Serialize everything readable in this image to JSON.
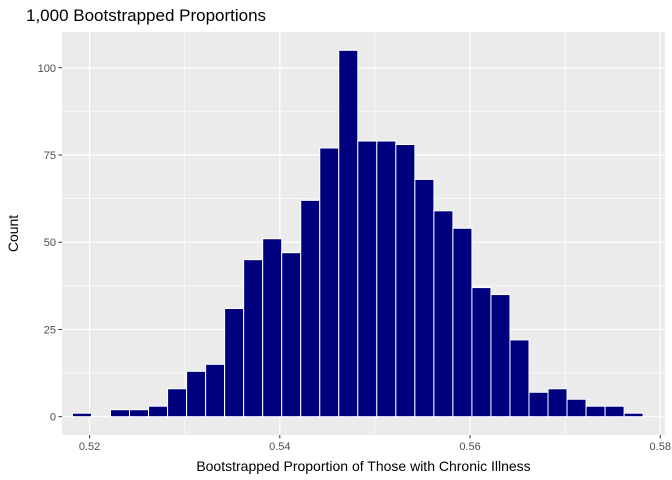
{
  "chart_data": {
    "type": "bar",
    "title": "1,000 Bootstrapped Proportions",
    "xlabel": "Bootstrapped Proportion of Those with Chronic Illness",
    "ylabel": "Count",
    "bin_width": 0.002,
    "bins": [
      {
        "x": 0.5192,
        "count": 1
      },
      {
        "x": 0.5212,
        "count": 0
      },
      {
        "x": 0.5232,
        "count": 2
      },
      {
        "x": 0.5252,
        "count": 2
      },
      {
        "x": 0.5272,
        "count": 3
      },
      {
        "x": 0.5292,
        "count": 8
      },
      {
        "x": 0.5312,
        "count": 13
      },
      {
        "x": 0.5332,
        "count": 15
      },
      {
        "x": 0.5352,
        "count": 31
      },
      {
        "x": 0.5372,
        "count": 45
      },
      {
        "x": 0.5392,
        "count": 51
      },
      {
        "x": 0.5412,
        "count": 47
      },
      {
        "x": 0.5432,
        "count": 62
      },
      {
        "x": 0.5452,
        "count": 77
      },
      {
        "x": 0.5472,
        "count": 105
      },
      {
        "x": 0.5492,
        "count": 79
      },
      {
        "x": 0.5512,
        "count": 79
      },
      {
        "x": 0.5532,
        "count": 78
      },
      {
        "x": 0.5552,
        "count": 68
      },
      {
        "x": 0.5572,
        "count": 59
      },
      {
        "x": 0.5592,
        "count": 54
      },
      {
        "x": 0.5612,
        "count": 37
      },
      {
        "x": 0.5632,
        "count": 35
      },
      {
        "x": 0.5652,
        "count": 22
      },
      {
        "x": 0.5672,
        "count": 7
      },
      {
        "x": 0.5692,
        "count": 8
      },
      {
        "x": 0.5712,
        "count": 5
      },
      {
        "x": 0.5732,
        "count": 3
      },
      {
        "x": 0.5752,
        "count": 3
      },
      {
        "x": 0.5772,
        "count": 1
      }
    ],
    "xlim": [
      0.5171,
      0.5805
    ],
    "ylim": [
      -5.25,
      110.25
    ],
    "x_ticks": [
      0.52,
      0.54,
      0.56,
      0.58
    ],
    "x_tick_labels": [
      "0.52",
      "0.54",
      "0.56",
      "0.58"
    ],
    "y_ticks": [
      0,
      25,
      50,
      75,
      100
    ],
    "y_tick_labels": [
      "0",
      "25",
      "50",
      "75",
      "100"
    ],
    "grid": true,
    "legend": "none",
    "bar_fill": "#00007f",
    "bar_outline": "#ffffff",
    "panel_background": "#ebebeb",
    "grid_color": "#ffffff"
  }
}
